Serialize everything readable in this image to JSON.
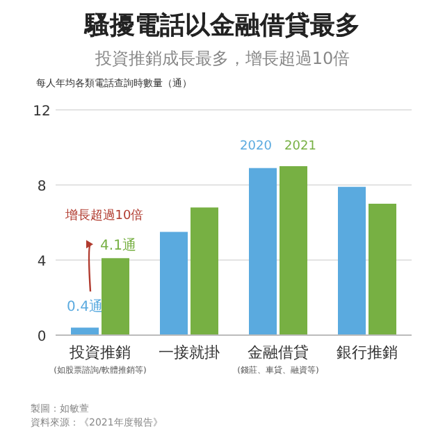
{
  "chart_data": {
    "type": "bar",
    "title": "騷擾電話以金融借貸最多",
    "subtitle": "投資推銷成長最多，增長超過10倍",
    "ylabel": "每人年均各類電話查詢時數量（通）",
    "categories": [
      "投資推銷\n(如股票諮詢/軟體推銷等)",
      "一接就掛",
      "金融借貸\n(錢莊、車貸、融資等)",
      "銀行推銷"
    ],
    "series": [
      {
        "name": "2020",
        "color": "#5aaadf",
        "values": [
          0.4,
          5.5,
          8.9,
          7.9
        ],
        "value_labels": [
          "0.4通",
          null,
          null,
          null
        ]
      },
      {
        "name": "2021",
        "color": "#77b043",
        "values": [
          4.1,
          6.8,
          9.0,
          7.0
        ],
        "value_labels": [
          "4.1通",
          null,
          null,
          null
        ]
      }
    ],
    "ylim": [
      0,
      12
    ],
    "yticks": [
      0,
      4,
      8,
      12
    ],
    "grid": "y",
    "legend": "top",
    "annotations": [
      {
        "text": "增長超過10倍",
        "y": 4.1
      },
      "製圖：如敏萱",
      "資料來源：《2021年度報告》"
    ]
  }
}
